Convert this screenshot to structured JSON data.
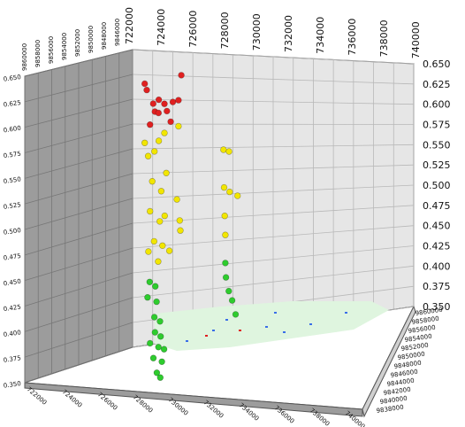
{
  "chart_data": {
    "type": "scatter",
    "title": "",
    "xlabel": "",
    "ylabel": "",
    "zlabel": "",
    "x_ticks_top": [
      "722000",
      "724000",
      "726000",
      "728000",
      "730000",
      "732000",
      "734000",
      "736000",
      "738000",
      "740000"
    ],
    "z_ticks_right": [
      "0.650",
      "0.625",
      "0.600",
      "0.575",
      "0.550",
      "0.525",
      "0.500",
      "0.475",
      "0.450",
      "0.425",
      "0.400",
      "0.375",
      "0.350"
    ],
    "z_ticks_left": [
      "0.650",
      "0.625",
      "0.600",
      "0.575",
      "0.550",
      "0.525",
      "0.500",
      "0.475",
      "0.450",
      "0.425",
      "0.400",
      "0.375",
      "0.350"
    ],
    "x_ticks_bottom": [
      "722000",
      "724000",
      "726000",
      "728000",
      "730000",
      "732000",
      "734000",
      "736000",
      "738000",
      "740000"
    ],
    "y_ticks_right": [
      "9860000",
      "9858000",
      "9856000",
      "9854000",
      "9852000",
      "9850000",
      "9848000",
      "9846000",
      "9844000",
      "9842000",
      "9840000",
      "9838000"
    ],
    "zlim": [
      0.35,
      0.65
    ],
    "grid": true,
    "colors": {
      "red": "#e02020",
      "yellow": "#f2e600",
      "green": "#2ecc2e",
      "wall": "#e6e6e6",
      "left_wall": "#9c9c9c",
      "floor": "#ffffff",
      "edge": "#555555",
      "grid": "#b8b8b8",
      "surface": "#dff5df"
    },
    "points": [
      {
        "x": 0.03,
        "y": 0.3,
        "z": 0.618,
        "c": "red"
      },
      {
        "x": 0.035,
        "y": 0.35,
        "z": 0.612,
        "c": "red"
      },
      {
        "x": 0.06,
        "y": 0.3,
        "z": 0.598,
        "c": "red"
      },
      {
        "x": 0.065,
        "y": 0.32,
        "z": 0.59,
        "c": "red"
      },
      {
        "x": 0.08,
        "y": 0.3,
        "z": 0.602,
        "c": "red"
      },
      {
        "x": 0.1,
        "y": 0.3,
        "z": 0.598,
        "c": "red"
      },
      {
        "x": 0.04,
        "y": 0.5,
        "z": 0.578,
        "c": "red"
      },
      {
        "x": 0.07,
        "y": 0.5,
        "z": 0.59,
        "c": "red"
      },
      {
        "x": 0.1,
        "y": 0.5,
        "z": 0.592,
        "c": "red"
      },
      {
        "x": 0.13,
        "y": 0.3,
        "z": 0.6,
        "c": "red"
      },
      {
        "x": 0.15,
        "y": 0.3,
        "z": 0.602,
        "c": "red"
      },
      {
        "x": 0.16,
        "y": 0.3,
        "z": 0.628,
        "c": "red"
      },
      {
        "x": 0.12,
        "y": 0.35,
        "z": 0.58,
        "c": "red"
      },
      {
        "x": 0.03,
        "y": 0.3,
        "z": 0.558,
        "c": "yellow"
      },
      {
        "x": 0.04,
        "y": 0.35,
        "z": 0.545,
        "c": "yellow"
      },
      {
        "x": 0.06,
        "y": 0.4,
        "z": 0.55,
        "c": "yellow"
      },
      {
        "x": 0.08,
        "y": 0.3,
        "z": 0.56,
        "c": "yellow"
      },
      {
        "x": 0.1,
        "y": 0.3,
        "z": 0.568,
        "c": "yellow"
      },
      {
        "x": 0.15,
        "y": 0.3,
        "z": 0.575,
        "c": "yellow"
      },
      {
        "x": 0.05,
        "y": 0.45,
        "z": 0.52,
        "c": "yellow"
      },
      {
        "x": 0.08,
        "y": 0.5,
        "z": 0.51,
        "c": "yellow"
      },
      {
        "x": 0.1,
        "y": 0.45,
        "z": 0.528,
        "c": "yellow"
      },
      {
        "x": 0.04,
        "y": 0.5,
        "z": 0.49,
        "c": "yellow"
      },
      {
        "x": 0.07,
        "y": 0.6,
        "z": 0.48,
        "c": "yellow"
      },
      {
        "x": 0.09,
        "y": 0.55,
        "z": 0.485,
        "c": "yellow"
      },
      {
        "x": 0.03,
        "y": 0.6,
        "z": 0.45,
        "c": "yellow"
      },
      {
        "x": 0.05,
        "y": 0.6,
        "z": 0.46,
        "c": "yellow"
      },
      {
        "x": 0.08,
        "y": 0.6,
        "z": 0.455,
        "c": "yellow"
      },
      {
        "x": 0.06,
        "y": 0.7,
        "z": 0.44,
        "c": "yellow"
      },
      {
        "x": 0.1,
        "y": 0.7,
        "z": 0.45,
        "c": "yellow"
      },
      {
        "x": 0.14,
        "y": 0.4,
        "z": 0.5,
        "c": "yellow"
      },
      {
        "x": 0.15,
        "y": 0.4,
        "z": 0.478,
        "c": "yellow"
      },
      {
        "x": 0.15,
        "y": 0.45,
        "z": 0.468,
        "c": "yellow"
      },
      {
        "x": 0.31,
        "y": 0.3,
        "z": 0.55,
        "c": "yellow"
      },
      {
        "x": 0.33,
        "y": 0.3,
        "z": 0.548,
        "c": "yellow"
      },
      {
        "x": 0.31,
        "y": 0.35,
        "z": 0.51,
        "c": "yellow"
      },
      {
        "x": 0.33,
        "y": 0.35,
        "z": 0.505,
        "c": "yellow"
      },
      {
        "x": 0.36,
        "y": 0.3,
        "z": 0.5,
        "c": "yellow"
      },
      {
        "x": 0.31,
        "y": 0.4,
        "z": 0.48,
        "c": "yellow"
      },
      {
        "x": 0.31,
        "y": 0.45,
        "z": 0.46,
        "c": "yellow"
      },
      {
        "x": 0.31,
        "y": 0.45,
        "z": 0.43,
        "c": "green"
      },
      {
        "x": 0.31,
        "y": 0.5,
        "z": 0.415,
        "c": "green"
      },
      {
        "x": 0.32,
        "y": 0.5,
        "z": 0.4,
        "c": "green"
      },
      {
        "x": 0.33,
        "y": 0.55,
        "z": 0.39,
        "c": "green"
      },
      {
        "x": 0.34,
        "y": 0.6,
        "z": 0.375,
        "c": "green"
      },
      {
        "x": 0.03,
        "y": 0.7,
        "z": 0.42,
        "c": "green"
      },
      {
        "x": 0.05,
        "y": 0.7,
        "z": 0.415,
        "c": "green"
      },
      {
        "x": 0.02,
        "y": 0.75,
        "z": 0.405,
        "c": "green"
      },
      {
        "x": 0.05,
        "y": 0.8,
        "z": 0.4,
        "c": "green"
      },
      {
        "x": 0.04,
        "y": 0.85,
        "z": 0.385,
        "c": "green"
      },
      {
        "x": 0.06,
        "y": 0.85,
        "z": 0.38,
        "c": "green"
      },
      {
        "x": 0.04,
        "y": 0.9,
        "z": 0.37,
        "c": "green"
      },
      {
        "x": 0.06,
        "y": 0.9,
        "z": 0.365,
        "c": "green"
      },
      {
        "x": 0.02,
        "y": 0.95,
        "z": 0.36,
        "c": "green"
      },
      {
        "x": 0.05,
        "y": 0.95,
        "z": 0.355,
        "c": "green"
      },
      {
        "x": 0.07,
        "y": 0.95,
        "z": 0.352,
        "c": "green"
      },
      {
        "x": 0.03,
        "y": 1.0,
        "z": 0.345,
        "c": "green"
      },
      {
        "x": 0.06,
        "y": 1.0,
        "z": 0.34,
        "c": "green"
      },
      {
        "x": 0.04,
        "y": 1.05,
        "z": 0.33,
        "c": "green"
      },
      {
        "x": 0.05,
        "y": 1.1,
        "z": 0.325,
        "c": "green"
      }
    ]
  }
}
